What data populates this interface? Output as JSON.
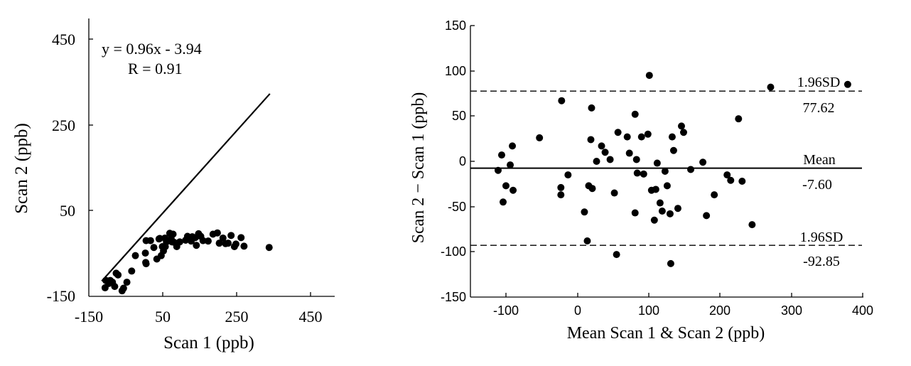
{
  "colors": {
    "marker": "#000000",
    "line": "#000000",
    "background": "#ffffff"
  },
  "chart_data": [
    {
      "type": "scatter",
      "xlabel": "Scan 1  (ppb)",
      "ylabel": "Scan 2  (ppb)",
      "xlim": [
        -150,
        450
      ],
      "ylim": [
        -150,
        450
      ],
      "x_ticks": [
        -150,
        50,
        250,
        450
      ],
      "y_ticks": [
        -150,
        50,
        250,
        450
      ],
      "x_tick_labels": [
        "-150",
        "50",
        "250",
        "450"
      ],
      "y_tick_labels": [
        "-150",
        "50",
        "250",
        "450"
      ],
      "annotations": [
        "y = 0.96x - 3.94",
        "R = 0.91"
      ],
      "regression": {
        "slope": 0.96,
        "intercept": -3.94,
        "x_range": [
          -115,
          340
        ]
      },
      "points": [
        [
          -106,
          -130
        ],
        [
          -104,
          -113
        ],
        [
          -99,
          -114
        ],
        [
          -96,
          -120
        ],
        [
          -92,
          -113
        ],
        [
          -86,
          -117
        ],
        [
          -80,
          -127
        ],
        [
          -71,
          -100
        ],
        [
          -76,
          -96
        ],
        [
          -60,
          -137
        ],
        [
          -56,
          -131
        ],
        [
          -47,
          -117
        ],
        [
          -34,
          -91
        ],
        [
          -24,
          -55
        ],
        [
          3,
          -49
        ],
        [
          4,
          -71
        ],
        [
          5,
          -74
        ],
        [
          5,
          -20
        ],
        [
          17,
          -20
        ],
        [
          26,
          -36
        ],
        [
          34,
          -63
        ],
        [
          40,
          -16
        ],
        [
          42,
          -15
        ],
        [
          46,
          -55
        ],
        [
          49,
          -34
        ],
        [
          52,
          -44
        ],
        [
          56,
          -14
        ],
        [
          57,
          -34
        ],
        [
          60,
          -23
        ],
        [
          65,
          -20
        ],
        [
          69,
          -3
        ],
        [
          73,
          -16
        ],
        [
          75,
          -23
        ],
        [
          78,
          -5
        ],
        [
          81,
          -24
        ],
        [
          88,
          -34
        ],
        [
          96,
          -23
        ],
        [
          112,
          -19
        ],
        [
          117,
          -10
        ],
        [
          122,
          -15
        ],
        [
          127,
          -21
        ],
        [
          130,
          -11
        ],
        [
          138,
          -13
        ],
        [
          141,
          -31
        ],
        [
          147,
          -4
        ],
        [
          153,
          -10
        ],
        [
          159,
          -20
        ],
        [
          173,
          -21
        ],
        [
          186,
          -5
        ],
        [
          198,
          -2
        ],
        [
          203,
          -26
        ],
        [
          213,
          -14
        ],
        [
          220,
          -27
        ],
        [
          227,
          -26
        ],
        [
          235,
          -8
        ],
        [
          244,
          -34
        ],
        [
          248,
          -28
        ],
        [
          262,
          -13
        ],
        [
          270,
          -33
        ],
        [
          338,
          -36
        ]
      ]
    },
    {
      "type": "scatter",
      "xlabel": "Mean Scan 1 & Scan 2 (ppb)",
      "ylabel": "Scan 2 − Scan 1 (ppb)",
      "xlim": [
        -150,
        400
      ],
      "ylim": [
        -150,
        150
      ],
      "x_ticks": [
        -100,
        0,
        100,
        200,
        300,
        400
      ],
      "y_ticks": [
        -150,
        -100,
        -50,
        0,
        50,
        100,
        150
      ],
      "x_tick_labels": [
        "-100",
        "0",
        "100",
        "200",
        "300",
        "400"
      ],
      "y_tick_labels": [
        "-150",
        "-100",
        "-50",
        "0",
        "50",
        "100",
        "150"
      ],
      "reference_lines": [
        {
          "label": "1.96SD",
          "value_label": "77.62",
          "value": 77.62,
          "style": "dashed"
        },
        {
          "label": "Mean",
          "value_label": "-7.60",
          "value": -7.6,
          "style": "solid"
        },
        {
          "label": "1.96SD",
          "value_label": "-92.85",
          "value": -92.85,
          "style": "dashed"
        }
      ],
      "points": [
        [
          -111,
          -10
        ],
        [
          -106,
          7
        ],
        [
          -104,
          -45
        ],
        [
          -100,
          -27
        ],
        [
          -94,
          -4
        ],
        [
          -91,
          17
        ],
        [
          -90,
          -32
        ],
        [
          -53,
          26
        ],
        [
          -22,
          67
        ],
        [
          -23,
          -29
        ],
        [
          -23,
          -37
        ],
        [
          -13,
          -15
        ],
        [
          10,
          -56
        ],
        [
          14,
          -88
        ],
        [
          16,
          -27
        ],
        [
          19,
          24
        ],
        [
          20,
          59
        ],
        [
          21,
          -30
        ],
        [
          27,
          0
        ],
        [
          34,
          17
        ],
        [
          39,
          10
        ],
        [
          46,
          2
        ],
        [
          52,
          -35
        ],
        [
          55,
          -103
        ],
        [
          57,
          32
        ],
        [
          70,
          27
        ],
        [
          73,
          9
        ],
        [
          81,
          52
        ],
        [
          81,
          -57
        ],
        [
          83,
          2
        ],
        [
          84,
          -13
        ],
        [
          90,
          27
        ],
        [
          93,
          -14
        ],
        [
          99,
          30
        ],
        [
          101,
          95
        ],
        [
          104,
          -32
        ],
        [
          108,
          -65
        ],
        [
          110,
          -31
        ],
        [
          112,
          -2
        ],
        [
          116,
          -46
        ],
        [
          119,
          -55
        ],
        [
          123,
          -11
        ],
        [
          126,
          -27
        ],
        [
          130,
          -58
        ],
        [
          131,
          -113
        ],
        [
          133,
          27
        ],
        [
          135,
          12
        ],
        [
          141,
          -52
        ],
        [
          146,
          39
        ],
        [
          149,
          32
        ],
        [
          159,
          -9
        ],
        [
          176,
          -1
        ],
        [
          181,
          -60
        ],
        [
          192,
          -37
        ],
        [
          210,
          -15
        ],
        [
          215,
          -21
        ],
        [
          226,
          47
        ],
        [
          231,
          -22
        ],
        [
          245,
          -70
        ],
        [
          271,
          82
        ],
        [
          379,
          85
        ]
      ]
    }
  ]
}
